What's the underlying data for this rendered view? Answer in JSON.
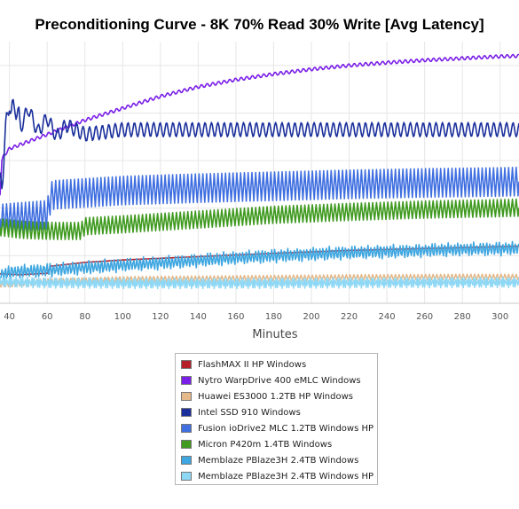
{
  "chart_data": {
    "type": "line",
    "title": "Preconditioning Curve - 8K 70% Read 30% Write [Avg Latency]",
    "xlabel": "Minutes",
    "ylabel": "",
    "xlim": [
      35,
      310
    ],
    "ylim": [
      0,
      55
    ],
    "x_ticks": [
      "40",
      "60",
      "80",
      "100",
      "120",
      "140",
      "160",
      "180",
      "200",
      "220",
      "240",
      "260",
      "280",
      "300"
    ],
    "grid": true,
    "legend_position": "bottom",
    "series": [
      {
        "name": "FlashMAX II HP Windows",
        "color": "#b5202a",
        "x": [
          35,
          45,
          55,
          60,
          62,
          80,
          100,
          140,
          180,
          220,
          260,
          300,
          310
        ],
        "y": [
          6.2,
          6.0,
          6.2,
          6.3,
          7.8,
          8.6,
          9.1,
          9.8,
          10.5,
          11.1,
          11.5,
          11.9,
          12.0
        ]
      },
      {
        "name": "Nytro WarpDrive 400 eMLC Windows",
        "color": "#7a1fe8",
        "x": [
          35,
          36,
          37,
          40,
          50,
          60,
          70,
          80,
          100,
          120,
          140,
          160,
          180,
          200,
          220,
          240,
          260,
          280,
          300,
          310
        ],
        "y": [
          23.0,
          30.0,
          31.0,
          32.5,
          34.0,
          35.5,
          37.0,
          38.5,
          41.0,
          43.5,
          45.5,
          47.0,
          48.2,
          49.2,
          50.0,
          50.6,
          51.1,
          51.5,
          51.9,
          52.0
        ]
      },
      {
        "name": "Huawei ES3000 1.2TB HP Windows",
        "color": "#e6b98a",
        "x": [
          35,
          60,
          100,
          160,
          220,
          280,
          310
        ],
        "y": [
          4.0,
          4.5,
          5.0,
          5.2,
          5.4,
          5.5,
          5.5
        ]
      },
      {
        "name": "Intel SSD 910 Windows",
        "color": "#1a2f9c",
        "x": [
          35,
          36,
          38,
          40,
          41,
          43,
          46,
          50,
          55,
          60,
          65,
          70,
          80,
          100,
          150,
          200,
          250,
          300,
          310
        ],
        "y": [
          25.0,
          25.5,
          36.0,
          43.0,
          39.5,
          42.0,
          37.0,
          41.0,
          36.0,
          39.0,
          35.0,
          37.5,
          35.5,
          36.5,
          36.5,
          36.5,
          36.5,
          36.5,
          36.5
        ]
      },
      {
        "name": "Fusion ioDrive2 MLC 1.2TB Windows HP",
        "color": "#3f6fe0",
        "x": [
          35,
          50,
          60,
          62,
          64,
          80,
          100,
          140,
          180,
          220,
          260,
          300,
          310
        ],
        "y": [
          17.8,
          18.3,
          18.6,
          22.5,
          22.8,
          23.2,
          23.7,
          24.2,
          24.6,
          25.0,
          25.3,
          25.5,
          25.6
        ]
      },
      {
        "name": "Micron P420m 1.4TB Windows",
        "color": "#3f9a1f",
        "x": [
          35,
          45,
          55,
          65,
          78,
          80,
          100,
          140,
          180,
          220,
          260,
          300,
          310
        ],
        "y": [
          16.0,
          15.5,
          15.3,
          15.2,
          15.2,
          16.2,
          16.6,
          17.6,
          18.6,
          19.2,
          19.7,
          20.0,
          20.1
        ]
      },
      {
        "name": "Memblaze PBlaze3H 2.4TB Windows",
        "color": "#3ea6e0",
        "x": [
          35,
          40,
          60,
          80,
          100,
          120,
          140,
          160,
          180,
          200,
          220,
          240,
          260,
          280,
          300,
          310
        ],
        "y": [
          6.0,
          6.5,
          7.0,
          7.5,
          8.0,
          8.5,
          9.0,
          9.5,
          10.0,
          10.3,
          10.6,
          10.9,
          11.1,
          11.3,
          11.5,
          11.6
        ]
      },
      {
        "name": "Memblaze PBlaze3H 2.4TB Windows HP",
        "color": "#8fd8f5",
        "x": [
          35,
          60,
          100,
          160,
          220,
          280,
          310
        ],
        "y": [
          4.5,
          4.3,
          4.2,
          4.2,
          4.3,
          4.4,
          4.4
        ]
      }
    ]
  }
}
